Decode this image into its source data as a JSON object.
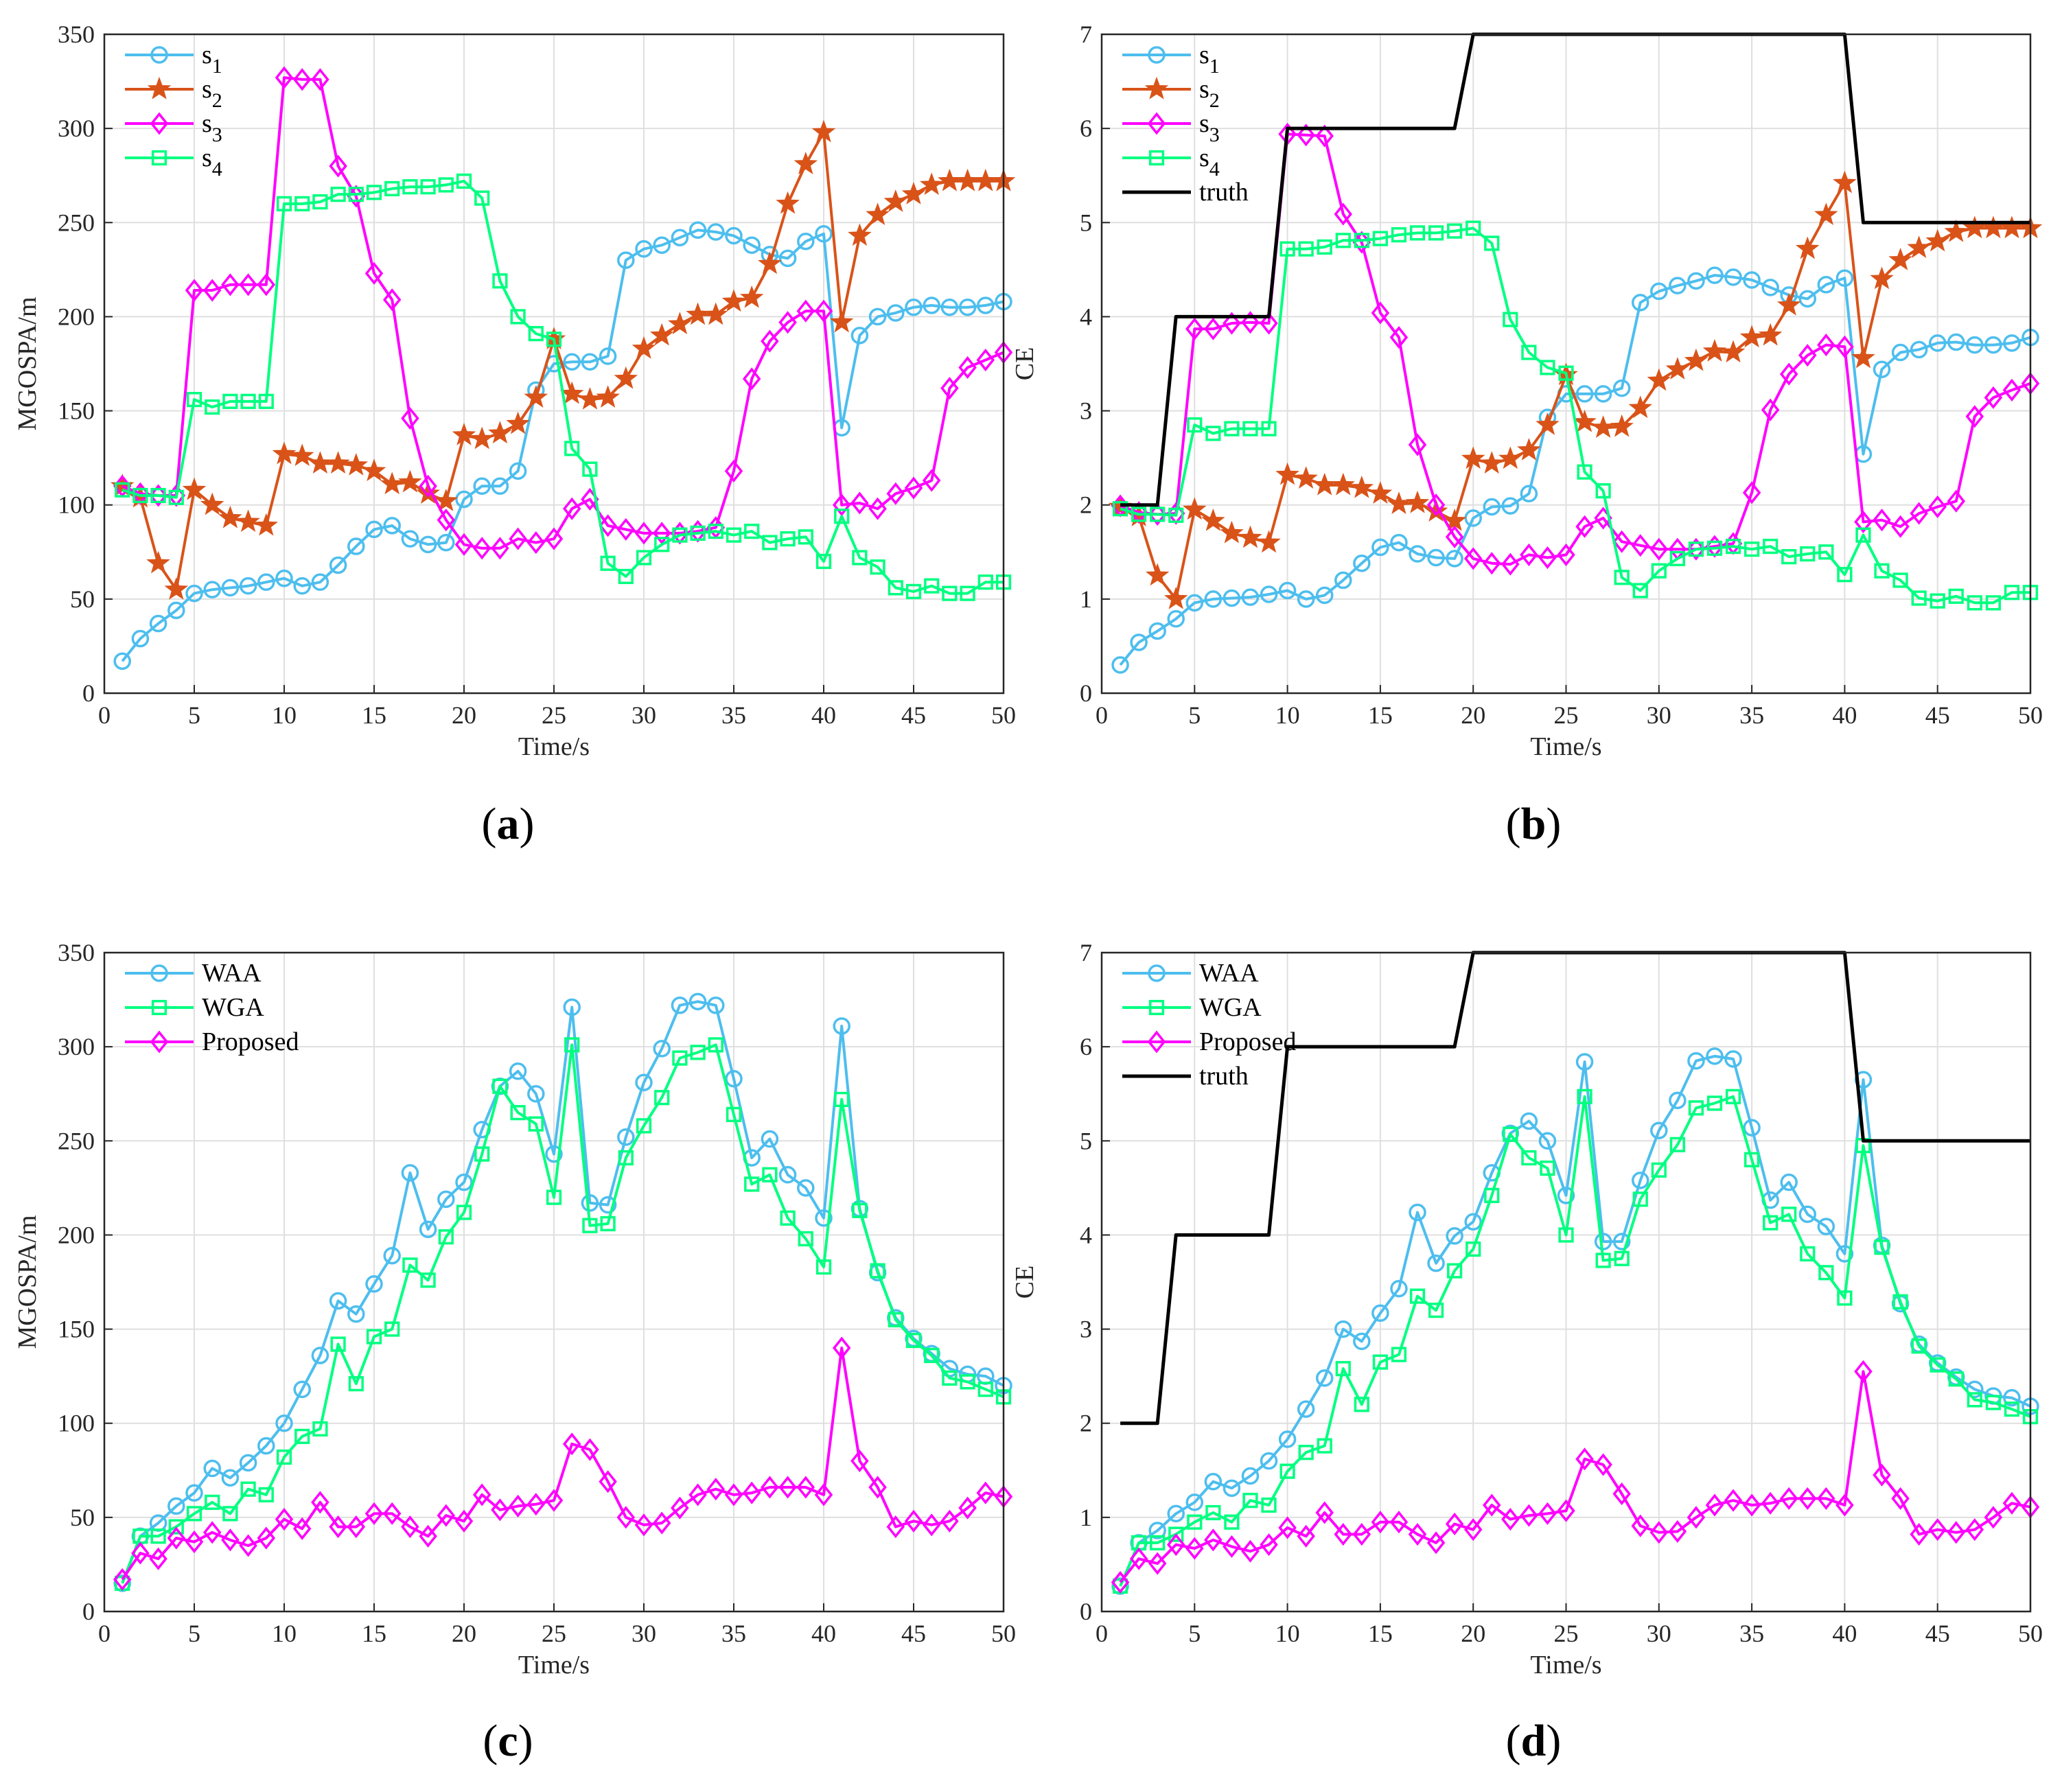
{
  "chart_data": [
    {
      "id": "a",
      "type": "line",
      "subplot_label": "(a)",
      "subplot_letter": "a",
      "xlabel": "Time/s",
      "ylabel": "MGOSPA/m",
      "xlim": [
        0,
        50
      ],
      "ylim": [
        0,
        350
      ],
      "xticks": [
        "0",
        "5",
        "10",
        "15",
        "20",
        "25",
        "30",
        "35",
        "40",
        "45",
        "50"
      ],
      "yticks": [
        "0",
        "50",
        "100",
        "150",
        "200",
        "250",
        "300",
        "350"
      ],
      "legend_position": "top-left",
      "series": [
        {
          "name": "s",
          "sub": "1",
          "color": "#4dbeee",
          "marker": "circle",
          "values": [
            17,
            29,
            37,
            44,
            53,
            55,
            56,
            57,
            59,
            61,
            57,
            59,
            68,
            78,
            87,
            89,
            82,
            79,
            80,
            103,
            110,
            110,
            118,
            161,
            175,
            176,
            176,
            179,
            230,
            236,
            238,
            242,
            246,
            245,
            243,
            238,
            233,
            231,
            240,
            244,
            141,
            190,
            200,
            202,
            205,
            206,
            205,
            205,
            206,
            208
          ]
        },
        {
          "name": "s",
          "sub": "2",
          "color": "#d95319",
          "marker": "star",
          "values": [
            110,
            104,
            69,
            55,
            108,
            100,
            93,
            91,
            89,
            127,
            126,
            122,
            122,
            121,
            118,
            111,
            112,
            106,
            102,
            137,
            135,
            138,
            143,
            157,
            188,
            159,
            156,
            157,
            167,
            183,
            190,
            196,
            201,
            201,
            208,
            210,
            228,
            260,
            281,
            298,
            197,
            243,
            254,
            261,
            265,
            270,
            272,
            272,
            272,
            272
          ]
        },
        {
          "name": "s",
          "sub": "3",
          "color": "#ff00ff",
          "marker": "diamond",
          "values": [
            110,
            106,
            105,
            105,
            214,
            214,
            217,
            217,
            217,
            327,
            326,
            326,
            280,
            264,
            223,
            209,
            146,
            110,
            92,
            79,
            77,
            77,
            82,
            80,
            82,
            98,
            103,
            89,
            87,
            85,
            85,
            85,
            86,
            88,
            118,
            167,
            187,
            197,
            203,
            203,
            100,
            101,
            98,
            106,
            109,
            113,
            162,
            173,
            177,
            181
          ]
        },
        {
          "name": "s",
          "sub": "4",
          "color": "#00ff80",
          "marker": "square",
          "values": [
            108,
            105,
            105,
            104,
            156,
            152,
            155,
            155,
            155,
            260,
            260,
            261,
            265,
            265,
            266,
            268,
            269,
            269,
            270,
            272,
            263,
            219,
            200,
            191,
            188,
            130,
            119,
            69,
            62,
            72,
            79,
            84,
            85,
            86,
            84,
            86,
            80,
            82,
            83,
            70,
            94,
            72,
            67,
            56,
            54,
            57,
            53,
            53,
            59,
            59
          ]
        }
      ]
    },
    {
      "id": "b",
      "type": "line",
      "subplot_label": "(b)",
      "subplot_letter": "b",
      "xlabel": "Time/s",
      "ylabel": "CE",
      "xlim": [
        0,
        50
      ],
      "ylim": [
        0,
        7
      ],
      "xticks": [
        "0",
        "5",
        "10",
        "15",
        "20",
        "25",
        "30",
        "35",
        "40",
        "45",
        "50"
      ],
      "yticks": [
        "0",
        "1",
        "2",
        "3",
        "4",
        "5",
        "6",
        "7"
      ],
      "legend_position": "top-left",
      "series": [
        {
          "name": "s",
          "sub": "1",
          "color": "#4dbeee",
          "marker": "circle",
          "values": [
            0.3,
            0.54,
            0.66,
            0.79,
            0.96,
            1.0,
            1.01,
            1.02,
            1.05,
            1.09,
            1.0,
            1.04,
            1.2,
            1.38,
            1.55,
            1.6,
            1.48,
            1.44,
            1.43,
            1.86,
            1.98,
            1.99,
            2.12,
            2.93,
            3.18,
            3.18,
            3.18,
            3.24,
            4.15,
            4.27,
            4.33,
            4.38,
            4.44,
            4.42,
            4.39,
            4.31,
            4.23,
            4.19,
            4.34,
            4.41,
            2.54,
            3.44,
            3.62,
            3.65,
            3.72,
            3.73,
            3.7,
            3.7,
            3.72,
            3.78
          ]
        },
        {
          "name": "s",
          "sub": "2",
          "color": "#d95319",
          "marker": "star",
          "values": [
            1.98,
            1.88,
            1.25,
            1.0,
            1.95,
            1.83,
            1.7,
            1.65,
            1.6,
            2.32,
            2.28,
            2.21,
            2.21,
            2.18,
            2.12,
            2.01,
            2.02,
            1.93,
            1.83,
            2.49,
            2.44,
            2.49,
            2.58,
            2.85,
            3.38,
            2.88,
            2.82,
            2.83,
            3.03,
            3.32,
            3.44,
            3.53,
            3.63,
            3.62,
            3.78,
            3.8,
            4.12,
            4.72,
            5.08,
            5.42,
            3.56,
            4.4,
            4.6,
            4.73,
            4.8,
            4.9,
            4.94,
            4.94,
            4.94,
            4.94
          ]
        },
        {
          "name": "s",
          "sub": "3",
          "color": "#ff00ff",
          "marker": "diamond",
          "values": [
            1.99,
            1.92,
            1.9,
            1.91,
            3.87,
            3.87,
            3.93,
            3.94,
            3.93,
            5.94,
            5.93,
            5.92,
            5.09,
            4.79,
            4.04,
            3.78,
            2.64,
            2.0,
            1.66,
            1.43,
            1.38,
            1.37,
            1.47,
            1.44,
            1.47,
            1.77,
            1.86,
            1.61,
            1.57,
            1.53,
            1.53,
            1.53,
            1.56,
            1.59,
            2.13,
            3.01,
            3.39,
            3.59,
            3.7,
            3.68,
            1.82,
            1.84,
            1.77,
            1.91,
            1.98,
            2.04,
            2.94,
            3.14,
            3.22,
            3.29
          ]
        },
        {
          "name": "s",
          "sub": "4",
          "color": "#00ff80",
          "marker": "square",
          "values": [
            1.96,
            1.9,
            1.9,
            1.89,
            2.85,
            2.76,
            2.81,
            2.81,
            2.81,
            4.72,
            4.72,
            4.74,
            4.81,
            4.81,
            4.83,
            4.87,
            4.89,
            4.89,
            4.91,
            4.94,
            4.78,
            3.97,
            3.62,
            3.46,
            3.4,
            2.35,
            2.15,
            1.23,
            1.09,
            1.3,
            1.43,
            1.53,
            1.54,
            1.56,
            1.53,
            1.56,
            1.45,
            1.48,
            1.5,
            1.26,
            1.68,
            1.3,
            1.2,
            1.01,
            0.98,
            1.03,
            0.96,
            0.96,
            1.07,
            1.07
          ]
        },
        {
          "name": "truth",
          "sub": "",
          "color": "#000000",
          "marker": "none",
          "values": [
            2,
            2,
            2,
            4,
            4,
            4,
            4,
            4,
            4,
            6,
            6,
            6,
            6,
            6,
            6,
            6,
            6,
            6,
            6,
            7,
            7,
            7,
            7,
            7,
            7,
            7,
            7,
            7,
            7,
            7,
            7,
            7,
            7,
            7,
            7,
            7,
            7,
            7,
            7,
            7,
            5,
            5,
            5,
            5,
            5,
            5,
            5,
            5,
            5,
            5
          ]
        }
      ]
    },
    {
      "id": "c",
      "type": "line",
      "subplot_label": "(c)",
      "subplot_letter": "c",
      "xlabel": "Time/s",
      "ylabel": "MGOSPA/m",
      "xlim": [
        0,
        50
      ],
      "ylim": [
        0,
        350
      ],
      "xticks": [
        "0",
        "5",
        "10",
        "15",
        "20",
        "25",
        "30",
        "35",
        "40",
        "45",
        "50"
      ],
      "yticks": [
        "0",
        "50",
        "100",
        "150",
        "200",
        "250",
        "300",
        "350"
      ],
      "legend_position": "top-left",
      "series": [
        {
          "name": "WAA",
          "sub": "",
          "color": "#4dbeee",
          "marker": "circle",
          "values": [
            15,
            40,
            47,
            56,
            63,
            76,
            71,
            79,
            88,
            100,
            118,
            136,
            165,
            158,
            174,
            189,
            233,
            203,
            219,
            228,
            256,
            279,
            287,
            275,
            243,
            321,
            217,
            216,
            252,
            281,
            299,
            322,
            324,
            322,
            283,
            241,
            251,
            232,
            225,
            209,
            311,
            214,
            180,
            156,
            145,
            137,
            129,
            126,
            125,
            120
          ]
        },
        {
          "name": "WGA",
          "sub": "",
          "color": "#00ff80",
          "marker": "square",
          "values": [
            15,
            40,
            40,
            45,
            52,
            58,
            52,
            65,
            62,
            82,
            93,
            97,
            142,
            121,
            146,
            150,
            184,
            176,
            199,
            212,
            243,
            279,
            265,
            259,
            220,
            301,
            205,
            206,
            241,
            258,
            273,
            294,
            297,
            301,
            264,
            227,
            232,
            209,
            198,
            183,
            272,
            213,
            181,
            155,
            144,
            136,
            124,
            122,
            118,
            114
          ]
        },
        {
          "name": "Proposed",
          "sub": "",
          "color": "#ff00ff",
          "marker": "diamond",
          "values": [
            17,
            31,
            28,
            39,
            37,
            42,
            38,
            35,
            39,
            49,
            44,
            58,
            45,
            45,
            52,
            52,
            45,
            40,
            51,
            48,
            62,
            54,
            56,
            57,
            59,
            89,
            86,
            69,
            50,
            46,
            47,
            55,
            62,
            65,
            62,
            63,
            66,
            66,
            66,
            62,
            140,
            80,
            66,
            45,
            48,
            46,
            48,
            55,
            63,
            61
          ]
        }
      ]
    },
    {
      "id": "d",
      "type": "line",
      "subplot_label": "(d)",
      "subplot_letter": "d",
      "xlabel": "Time/s",
      "ylabel": "CE",
      "xlim": [
        0,
        50
      ],
      "ylim": [
        0,
        7
      ],
      "xticks": [
        "0",
        "5",
        "10",
        "15",
        "20",
        "25",
        "30",
        "35",
        "40",
        "45",
        "50"
      ],
      "yticks": [
        "0",
        "1",
        "2",
        "3",
        "4",
        "5",
        "6",
        "7"
      ],
      "legend_position": "top-left",
      "series": [
        {
          "name": "WAA",
          "sub": "",
          "color": "#4dbeee",
          "marker": "circle",
          "values": [
            0.27,
            0.73,
            0.86,
            1.04,
            1.16,
            1.38,
            1.31,
            1.44,
            1.6,
            1.83,
            2.15,
            2.48,
            3.0,
            2.87,
            3.17,
            3.43,
            4.24,
            3.7,
            3.99,
            4.14,
            4.66,
            5.08,
            5.21,
            5.0,
            4.42,
            5.84,
            3.93,
            3.93,
            4.58,
            5.11,
            5.43,
            5.85,
            5.9,
            5.87,
            5.14,
            4.37,
            4.56,
            4.22,
            4.09,
            3.8,
            5.65,
            3.89,
            3.27,
            2.84,
            2.64,
            2.49,
            2.36,
            2.29,
            2.27,
            2.18
          ]
        },
        {
          "name": "WGA",
          "sub": "",
          "color": "#00ff80",
          "marker": "square",
          "values": [
            0.27,
            0.73,
            0.73,
            0.82,
            0.95,
            1.05,
            0.95,
            1.18,
            1.13,
            1.49,
            1.69,
            1.76,
            2.58,
            2.2,
            2.65,
            2.73,
            3.35,
            3.2,
            3.62,
            3.85,
            4.42,
            5.07,
            4.82,
            4.71,
            4.0,
            5.47,
            3.73,
            3.75,
            4.38,
            4.69,
            4.96,
            5.35,
            5.4,
            5.47,
            4.8,
            4.13,
            4.22,
            3.8,
            3.6,
            3.33,
            4.95,
            3.87,
            3.29,
            2.82,
            2.62,
            2.47,
            2.25,
            2.22,
            2.15,
            2.07
          ]
        },
        {
          "name": "Proposed",
          "sub": "",
          "color": "#ff00ff",
          "marker": "diamond",
          "values": [
            0.31,
            0.56,
            0.51,
            0.71,
            0.67,
            0.76,
            0.69,
            0.64,
            0.71,
            0.89,
            0.8,
            1.05,
            0.82,
            0.82,
            0.95,
            0.95,
            0.82,
            0.73,
            0.93,
            0.87,
            1.13,
            0.98,
            1.02,
            1.04,
            1.07,
            1.62,
            1.56,
            1.25,
            0.91,
            0.84,
            0.85,
            1.0,
            1.13,
            1.18,
            1.13,
            1.15,
            1.2,
            1.2,
            1.2,
            1.13,
            2.55,
            1.45,
            1.2,
            0.82,
            0.87,
            0.84,
            0.87,
            1.0,
            1.15,
            1.11
          ]
        },
        {
          "name": "truth",
          "sub": "",
          "color": "#000000",
          "marker": "none",
          "values": [
            2,
            2,
            2,
            4,
            4,
            4,
            4,
            4,
            4,
            6,
            6,
            6,
            6,
            6,
            6,
            6,
            6,
            6,
            6,
            7,
            7,
            7,
            7,
            7,
            7,
            7,
            7,
            7,
            7,
            7,
            7,
            7,
            7,
            7,
            7,
            7,
            7,
            7,
            7,
            7,
            5,
            5,
            5,
            5,
            5,
            5,
            5,
            5,
            5,
            5
          ]
        }
      ]
    }
  ]
}
